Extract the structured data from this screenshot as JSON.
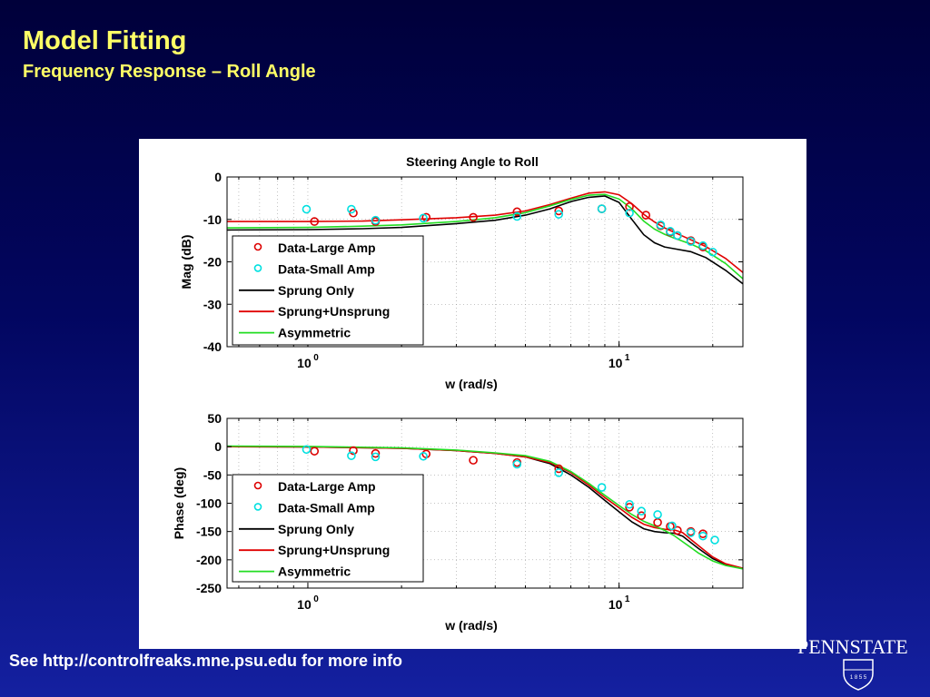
{
  "slide": {
    "title": "Model Fitting",
    "subtitle": "Frequency Response – Roll Angle",
    "footer": "See http://controlfreaks.mne.psu.edu for more info",
    "logo_text": "PENNSTATE",
    "logo_year": "1 8 5 5"
  },
  "colors": {
    "background_top": "#00003a",
    "background_bottom": "#1420a0",
    "title": "#ffff66",
    "data_large": "#dd0000",
    "data_small": "#00e0e0",
    "sprung_only": "#000000",
    "sprung_unsprung": "#e00000",
    "asymmetric": "#22dd22"
  },
  "chart_data": [
    {
      "type": "line",
      "title": "Steering Angle to Roll",
      "xlabel": "w (rad/s)",
      "ylabel": "Mag (dB)",
      "xscale": "log",
      "xlim": [
        0.55,
        25
      ],
      "ylim": [
        -40,
        0
      ],
      "xticks": [
        {
          "base": "10",
          "exp": "0"
        },
        {
          "base": "10",
          "exp": "1"
        }
      ],
      "yticks": [
        "0",
        "-10",
        "-20",
        "-30",
        "-40"
      ],
      "legend_position": "left",
      "legend": [
        "Data-Large Amp",
        "Data-Small Amp",
        "Sprung Only",
        "Sprung+Unsprung",
        "Asymmetric"
      ],
      "series": [
        {
          "name": "Sprung Only",
          "kind": "line",
          "color": "#000000",
          "x": [
            0.55,
            1,
            1.5,
            2,
            3,
            4,
            5,
            6,
            7,
            8,
            9,
            10,
            11,
            12,
            13,
            14,
            15,
            17,
            19,
            22,
            25
          ],
          "y": [
            -12.5,
            -12.4,
            -12.2,
            -11.9,
            -11,
            -10.2,
            -9,
            -7.5,
            -5.8,
            -4.8,
            -4.5,
            -6,
            -10,
            -13.6,
            -15.5,
            -16.5,
            -16.9,
            -17.6,
            -19,
            -22,
            -25.2
          ]
        },
        {
          "name": "Sprung+Unsprung",
          "kind": "line",
          "color": "#e00000",
          "x": [
            0.55,
            1,
            1.5,
            2,
            3,
            4,
            5,
            6,
            7,
            8,
            9,
            10,
            11,
            12,
            13,
            14,
            15,
            17,
            19,
            22,
            25
          ],
          "y": [
            -10.5,
            -10.5,
            -10.4,
            -10.1,
            -9.6,
            -9,
            -8,
            -6.5,
            -5,
            -3.8,
            -3.5,
            -4.2,
            -6.3,
            -8.8,
            -10.6,
            -12,
            -13,
            -14.8,
            -16.4,
            -19.2,
            -22.5
          ]
        },
        {
          "name": "Asymmetric",
          "kind": "line",
          "color": "#22dd22",
          "x": [
            0.55,
            1,
            1.5,
            2,
            3,
            4,
            5,
            6,
            7,
            8,
            9,
            10,
            11,
            12,
            13,
            14,
            15,
            17,
            19,
            22,
            25
          ],
          "y": [
            -12,
            -11.9,
            -11.6,
            -11.3,
            -10.5,
            -9.6,
            -8.4,
            -6.8,
            -5.3,
            -4.3,
            -4.1,
            -5.2,
            -7.5,
            -10.4,
            -12.3,
            -13.5,
            -14.4,
            -15.8,
            -17.4,
            -20.4,
            -24
          ]
        },
        {
          "name": "Data-Large Amp",
          "kind": "markers",
          "color": "#dd0000",
          "x": [
            1.05,
            1.4,
            1.65,
            2.4,
            3.4,
            4.7,
            6.4,
            8.8,
            10.8,
            12.2,
            13.6,
            14.6,
            15.4,
            17,
            18.6
          ],
          "y": [
            -10.5,
            -8.5,
            -10.5,
            -9.5,
            -9.5,
            -8.2,
            -8,
            -7.5,
            -7,
            -9,
            -11.5,
            -13,
            -13.8,
            -15,
            -16.5
          ]
        },
        {
          "name": "Data-Small Amp",
          "kind": "markers",
          "color": "#00e0e0",
          "x": [
            0.99,
            1.38,
            1.65,
            2.35,
            4.7,
            6.4,
            8.8,
            10.8,
            13.6,
            14.6,
            15.4,
            17,
            18.6,
            20
          ],
          "y": [
            -7.6,
            -7.6,
            -10.2,
            -9.7,
            -9.3,
            -8.8,
            -7.5,
            -8.5,
            -11.3,
            -12.8,
            -13.8,
            -15.2,
            -16.2,
            -17.7
          ]
        }
      ]
    },
    {
      "type": "line",
      "title": "",
      "xlabel": "w (rad/s)",
      "ylabel": "Phase (deg)",
      "xscale": "log",
      "xlim": [
        0.55,
        25
      ],
      "ylim": [
        -250,
        50
      ],
      "xticks": [
        {
          "base": "10",
          "exp": "0"
        },
        {
          "base": "10",
          "exp": "1"
        }
      ],
      "yticks": [
        "50",
        "0",
        "-50",
        "-100",
        "-150",
        "-200",
        "-250"
      ],
      "legend_position": "left",
      "legend": [
        "Data-Large Amp",
        "Data-Small Amp",
        "Sprung Only",
        "Sprung+Unsprung",
        "Asymmetric"
      ],
      "series": [
        {
          "name": "Sprung Only",
          "kind": "line",
          "color": "#000000",
          "x": [
            0.55,
            1,
            2,
            3,
            4,
            5,
            6,
            7,
            8,
            9,
            10,
            11,
            12,
            13,
            14,
            15,
            16,
            18,
            20,
            22,
            25
          ],
          "y": [
            0,
            -0.5,
            -3,
            -7,
            -12,
            -18,
            -30,
            -50,
            -72,
            -95,
            -115,
            -133,
            -145,
            -150,
            -152,
            -153,
            -158,
            -180,
            -198,
            -208,
            -215
          ]
        },
        {
          "name": "Sprung+Unsprung",
          "kind": "line",
          "color": "#e00000",
          "x": [
            0.55,
            1,
            2,
            3,
            4,
            5,
            6,
            7,
            8,
            9,
            10,
            11,
            12,
            13,
            14,
            15,
            16,
            18,
            20,
            22,
            25
          ],
          "y": [
            0,
            -0.5,
            -3,
            -7,
            -12,
            -18,
            -28,
            -46,
            -68,
            -90,
            -108,
            -125,
            -137,
            -143,
            -146,
            -147,
            -152,
            -175,
            -195,
            -207,
            -215
          ]
        },
        {
          "name": "Asymmetric",
          "kind": "line",
          "color": "#22dd22",
          "x": [
            0.55,
            1,
            2,
            3,
            4,
            5,
            6,
            7,
            8,
            9,
            10,
            11,
            12,
            13,
            14,
            15,
            16,
            18,
            20,
            22,
            25
          ],
          "y": [
            1,
            0.5,
            -2,
            -6,
            -11,
            -16,
            -26,
            -44,
            -65,
            -86,
            -104,
            -120,
            -132,
            -140,
            -148,
            -157,
            -168,
            -188,
            -202,
            -210,
            -216
          ]
        },
        {
          "name": "Data-Large Amp",
          "kind": "markers",
          "color": "#dd0000",
          "x": [
            1.05,
            1.4,
            1.65,
            2.4,
            3.4,
            4.7,
            6.4,
            10.8,
            11.8,
            13.3,
            14.6,
            15.4,
            17,
            18.6
          ],
          "y": [
            -8,
            -7,
            -12,
            -13,
            -24,
            -28,
            -39,
            -107,
            -122,
            -134,
            -141,
            -148,
            -150,
            -154
          ]
        },
        {
          "name": "Data-Small Amp",
          "kind": "markers",
          "color": "#00e0e0",
          "x": [
            0.99,
            1.38,
            1.65,
            2.35,
            4.7,
            6.4,
            8.8,
            10.8,
            11.8,
            13.3,
            14.8,
            17,
            18.6,
            20.3
          ],
          "y": [
            -5,
            -16,
            -18,
            -17,
            -31,
            -46,
            -72,
            -102,
            -114,
            -120,
            -140,
            -152,
            -158,
            -165
          ]
        }
      ]
    }
  ]
}
